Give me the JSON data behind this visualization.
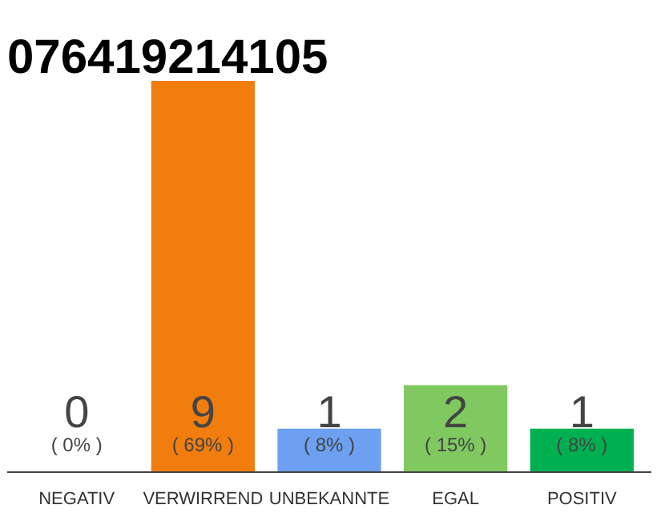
{
  "chart_data": {
    "type": "bar",
    "title": "076419214105",
    "categories": [
      "NEGATIV",
      "VERWIRREND",
      "UNBEKANNTE",
      "EGAL",
      "POSITIV"
    ],
    "values": [
      0,
      9,
      1,
      2,
      1
    ],
    "colors": [
      "#cccccc",
      "#f07d0e",
      "#6da0f0",
      "#80c860",
      "#00b050"
    ],
    "data_labels": true,
    "annotations": [
      {
        "text": "( 0% )",
        "x": "NEGATIV",
        "y": 0
      },
      {
        "text": "( 69% )",
        "x": "VERWIRREND",
        "y": 0
      },
      {
        "text": "( 8% )",
        "x": "UNBEKANNTE",
        "y": 0
      },
      {
        "text": "( 15% )",
        "x": "EGAL",
        "y": 0
      },
      {
        "text": "( 8% )",
        "x": "POSITIV",
        "y": 0
      }
    ],
    "grid": false
  }
}
